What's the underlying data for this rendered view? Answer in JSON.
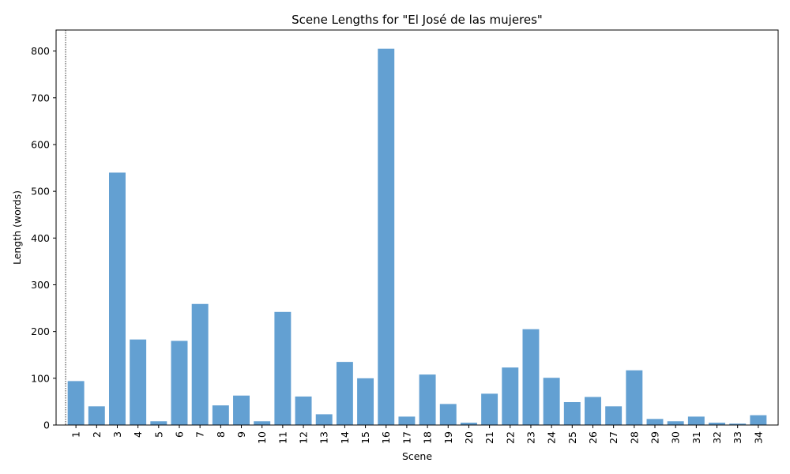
{
  "chart_data": {
    "type": "bar",
    "title": "Scene Lengths for \"El José de las mujeres\"",
    "xlabel": "Scene",
    "ylabel": "Length (words)",
    "categories": [
      "1",
      "2",
      "3",
      "4",
      "5",
      "6",
      "7",
      "8",
      "9",
      "10",
      "11",
      "12",
      "13",
      "14",
      "15",
      "16",
      "17",
      "18",
      "19",
      "20",
      "21",
      "22",
      "23",
      "24",
      "25",
      "26",
      "27",
      "28",
      "29",
      "30",
      "31",
      "32",
      "33",
      "34"
    ],
    "values": [
      94,
      40,
      540,
      183,
      8,
      180,
      259,
      42,
      63,
      8,
      242,
      61,
      23,
      135,
      100,
      805,
      18,
      108,
      45,
      5,
      67,
      123,
      205,
      101,
      49,
      60,
      40,
      117,
      13,
      8,
      18,
      5,
      3,
      21
    ],
    "ylim": [
      0,
      845
    ],
    "yticks": [
      0,
      100,
      200,
      300,
      400,
      500,
      600,
      700,
      800
    ],
    "bar_color": "#5b9bd0",
    "grid": false,
    "annotations": [
      {
        "type": "vertical-dotted-line",
        "x": 0.5
      }
    ]
  }
}
